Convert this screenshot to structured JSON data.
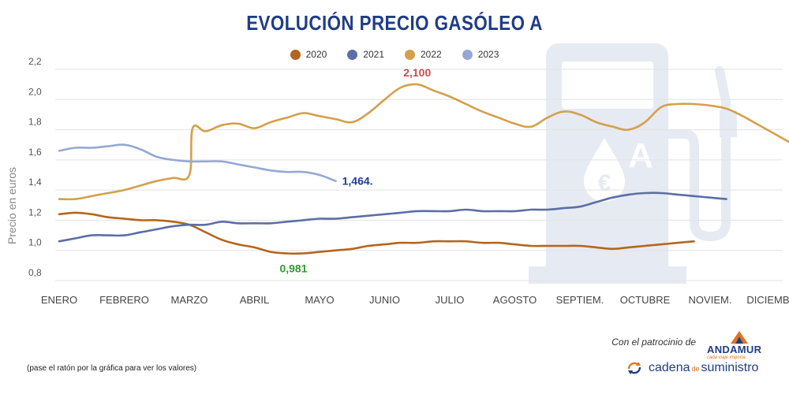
{
  "chart_data": {
    "type": "line",
    "title": "EVOLUCIÓN PRECIO GASÓLEO A",
    "ylabel": "Precio en euros",
    "xlabel": "",
    "ylim": [
      0.8,
      2.2
    ],
    "yticks": [
      "0,8",
      "1,0",
      "1,2",
      "1,4",
      "1,6",
      "1,8",
      "2,0",
      "2,2"
    ],
    "categories": [
      "ENERO",
      "FEBRERO",
      "MARZO",
      "ABRIL",
      "MAYO",
      "JUNIO",
      "JULIO",
      "AGOSTO",
      "SEPTIEM.",
      "OCTUBRE",
      "NOVIEM.",
      "DICIEMBRE"
    ],
    "grid": true,
    "legend_position": "top-center",
    "series": [
      {
        "name": "2020",
        "color": "#b5651d",
        "points": [
          [
            0.0,
            1.24
          ],
          [
            0.25,
            1.25
          ],
          [
            0.5,
            1.24
          ],
          [
            0.75,
            1.22
          ],
          [
            1.0,
            1.21
          ],
          [
            1.25,
            1.2
          ],
          [
            1.5,
            1.2
          ],
          [
            1.75,
            1.19
          ],
          [
            2.0,
            1.17
          ],
          [
            2.25,
            1.12
          ],
          [
            2.5,
            1.07
          ],
          [
            2.75,
            1.04
          ],
          [
            3.0,
            1.02
          ],
          [
            3.25,
            0.99
          ],
          [
            3.5,
            0.98
          ],
          [
            3.75,
            0.98
          ],
          [
            4.0,
            0.99
          ],
          [
            4.25,
            1.0
          ],
          [
            4.5,
            1.01
          ],
          [
            4.75,
            1.03
          ],
          [
            5.0,
            1.04
          ],
          [
            5.25,
            1.05
          ],
          [
            5.5,
            1.05
          ],
          [
            5.75,
            1.06
          ],
          [
            6.0,
            1.06
          ],
          [
            6.25,
            1.06
          ],
          [
            6.5,
            1.05
          ],
          [
            6.75,
            1.05
          ],
          [
            7.0,
            1.04
          ],
          [
            7.25,
            1.03
          ],
          [
            7.5,
            1.03
          ],
          [
            7.75,
            1.03
          ],
          [
            8.0,
            1.03
          ],
          [
            8.25,
            1.02
          ],
          [
            8.5,
            1.01
          ],
          [
            8.75,
            1.02
          ],
          [
            9.0,
            1.03
          ],
          [
            9.25,
            1.04
          ],
          [
            9.5,
            1.05
          ],
          [
            9.75,
            1.06
          ]
        ]
      },
      {
        "name": "2021",
        "color": "#5b6ea6",
        "points": [
          [
            0.0,
            1.06
          ],
          [
            0.25,
            1.08
          ],
          [
            0.5,
            1.1
          ],
          [
            0.75,
            1.1
          ],
          [
            1.0,
            1.1
          ],
          [
            1.25,
            1.12
          ],
          [
            1.5,
            1.14
          ],
          [
            1.75,
            1.16
          ],
          [
            2.0,
            1.17
          ],
          [
            2.25,
            1.17
          ],
          [
            2.5,
            1.19
          ],
          [
            2.75,
            1.18
          ],
          [
            3.0,
            1.18
          ],
          [
            3.25,
            1.18
          ],
          [
            3.5,
            1.19
          ],
          [
            3.75,
            1.2
          ],
          [
            4.0,
            1.21
          ],
          [
            4.25,
            1.21
          ],
          [
            4.5,
            1.22
          ],
          [
            4.75,
            1.23
          ],
          [
            5.0,
            1.24
          ],
          [
            5.25,
            1.25
          ],
          [
            5.5,
            1.26
          ],
          [
            5.75,
            1.26
          ],
          [
            6.0,
            1.26
          ],
          [
            6.25,
            1.27
          ],
          [
            6.5,
            1.26
          ],
          [
            6.75,
            1.26
          ],
          [
            7.0,
            1.26
          ],
          [
            7.25,
            1.27
          ],
          [
            7.5,
            1.27
          ],
          [
            7.75,
            1.28
          ],
          [
            8.0,
            1.29
          ],
          [
            8.25,
            1.32
          ],
          [
            8.5,
            1.35
          ],
          [
            8.75,
            1.37
          ],
          [
            9.0,
            1.38
          ],
          [
            9.25,
            1.38
          ],
          [
            9.5,
            1.37
          ],
          [
            9.75,
            1.36
          ],
          [
            10.0,
            1.35
          ],
          [
            10.25,
            1.34
          ]
        ]
      },
      {
        "name": "2022",
        "color": "#d4a04c",
        "points": [
          [
            0.0,
            1.34
          ],
          [
            0.25,
            1.34
          ],
          [
            0.5,
            1.36
          ],
          [
            0.75,
            1.38
          ],
          [
            1.0,
            1.4
          ],
          [
            1.25,
            1.43
          ],
          [
            1.5,
            1.46
          ],
          [
            1.75,
            1.48
          ],
          [
            2.0,
            1.5
          ],
          [
            2.05,
            1.81
          ],
          [
            2.25,
            1.79
          ],
          [
            2.5,
            1.83
          ],
          [
            2.75,
            1.84
          ],
          [
            3.0,
            1.81
          ],
          [
            3.25,
            1.85
          ],
          [
            3.5,
            1.88
          ],
          [
            3.75,
            1.91
          ],
          [
            4.0,
            1.89
          ],
          [
            4.25,
            1.87
          ],
          [
            4.5,
            1.85
          ],
          [
            4.75,
            1.91
          ],
          [
            5.0,
            2.0
          ],
          [
            5.25,
            2.08
          ],
          [
            5.5,
            2.1
          ],
          [
            5.75,
            2.06
          ],
          [
            6.0,
            2.02
          ],
          [
            6.25,
            1.97
          ],
          [
            6.5,
            1.92
          ],
          [
            6.75,
            1.88
          ],
          [
            7.0,
            1.84
          ],
          [
            7.25,
            1.82
          ],
          [
            7.5,
            1.88
          ],
          [
            7.75,
            1.92
          ],
          [
            8.0,
            1.9
          ],
          [
            8.25,
            1.85
          ],
          [
            8.5,
            1.82
          ],
          [
            8.75,
            1.8
          ],
          [
            9.0,
            1.85
          ],
          [
            9.25,
            1.95
          ],
          [
            9.5,
            1.97
          ],
          [
            9.75,
            1.97
          ],
          [
            10.0,
            1.96
          ],
          [
            10.25,
            1.94
          ],
          [
            10.5,
            1.89
          ],
          [
            10.75,
            1.83
          ],
          [
            11.0,
            1.77
          ],
          [
            11.25,
            1.71
          ],
          [
            11.5,
            1.66
          ],
          [
            11.75,
            1.64
          ]
        ]
      },
      {
        "name": "2023",
        "color": "#95a8d4",
        "points": [
          [
            0.0,
            1.66
          ],
          [
            0.25,
            1.68
          ],
          [
            0.5,
            1.68
          ],
          [
            0.75,
            1.69
          ],
          [
            1.0,
            1.7
          ],
          [
            1.25,
            1.67
          ],
          [
            1.5,
            1.62
          ],
          [
            1.75,
            1.6
          ],
          [
            2.0,
            1.59
          ],
          [
            2.25,
            1.59
          ],
          [
            2.5,
            1.59
          ],
          [
            2.75,
            1.57
          ],
          [
            3.0,
            1.55
          ],
          [
            3.25,
            1.53
          ],
          [
            3.5,
            1.52
          ],
          [
            3.75,
            1.52
          ],
          [
            4.0,
            1.5
          ],
          [
            4.25,
            1.46
          ]
        ]
      }
    ],
    "annotations": [
      {
        "text": "2,100",
        "x": 5.5,
        "y": 2.1,
        "color": "#c0504d",
        "position": "above"
      },
      {
        "text": "0,981",
        "x": 3.6,
        "y": 0.981,
        "color": "#2e9e2e",
        "position": "below"
      },
      {
        "text": "1,464.",
        "x": 4.25,
        "y": 1.46,
        "color": "#1f3c88",
        "position": "right"
      }
    ]
  },
  "sponsor": {
    "label": "Con el patrocinio de",
    "brand": "ANDAMUR",
    "brand_tagline": "cada viaje importa"
  },
  "footer": {
    "note": "(pase el ratón por la gráfica para ver los valores)",
    "logo_main": "cadena",
    "logo_small": "de",
    "logo_end": "suministro"
  },
  "colors": {
    "title": "#1f3c88",
    "background_icon": "#e6eaf3"
  }
}
